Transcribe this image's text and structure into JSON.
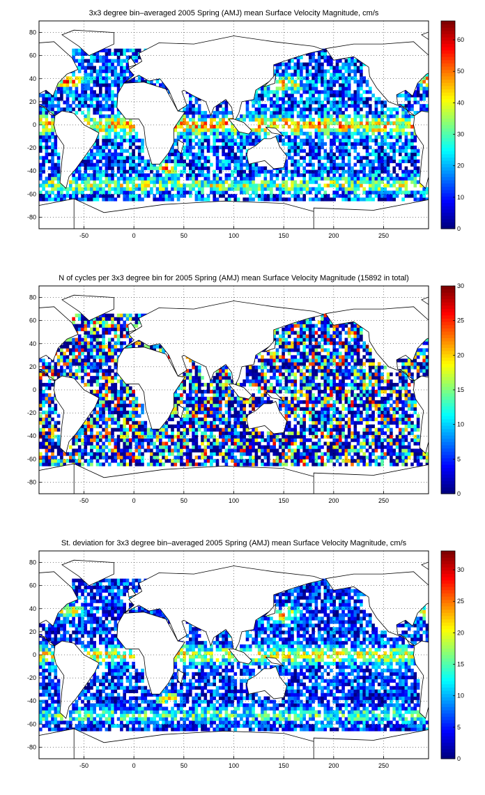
{
  "chart_data": [
    {
      "type": "heatmap",
      "title": "3x3 degree bin–averaged 2005 Spring (AMJ) mean Surface Velocity Magnitude, cm/s",
      "xlim": [
        -95,
        295
      ],
      "ylim": [
        -90,
        90
      ],
      "xticks": [
        -50,
        0,
        50,
        100,
        150,
        200,
        250
      ],
      "yticks": [
        80,
        60,
        40,
        20,
        0,
        -20,
        -40,
        -60,
        -80
      ],
      "grid": "dotted",
      "bin_size_deg": 3,
      "colorbar": {
        "min": 0,
        "max": 66,
        "ticks": [
          0,
          10,
          20,
          30,
          40,
          50,
          60
        ],
        "colormap": "jet",
        "placement": "right"
      }
    },
    {
      "type": "heatmap",
      "title": "N of cycles per 3x3 degree bin for 2005 Spring (AMJ) mean Surface Velocity Magnitude (15892 in total)",
      "xlim": [
        -95,
        295
      ],
      "ylim": [
        -90,
        90
      ],
      "xticks": [
        -50,
        0,
        50,
        100,
        150,
        200,
        250
      ],
      "yticks": [
        80,
        60,
        40,
        20,
        0,
        -20,
        -40,
        -60,
        -80
      ],
      "grid": "dotted",
      "bin_size_deg": 3,
      "colorbar": {
        "min": 0,
        "max": 30,
        "ticks": [
          0,
          5,
          10,
          15,
          20,
          25,
          30
        ],
        "colormap": "jet",
        "placement": "right"
      }
    },
    {
      "type": "heatmap",
      "title": "St. deviation for 3x3 degree bin–averaged 2005 Spring (AMJ) mean Surface Velocity Magnitude, cm/s",
      "xlim": [
        -95,
        295
      ],
      "ylim": [
        -90,
        90
      ],
      "xticks": [
        -50,
        0,
        50,
        100,
        150,
        200,
        250
      ],
      "yticks": [
        80,
        60,
        40,
        20,
        0,
        -20,
        -40,
        -60,
        -80
      ],
      "grid": "dotted",
      "bin_size_deg": 3,
      "colorbar": {
        "min": 0,
        "max": 33,
        "ticks": [
          0,
          5,
          10,
          15,
          20,
          25,
          30
        ],
        "colormap": "jet",
        "placement": "right"
      }
    }
  ]
}
